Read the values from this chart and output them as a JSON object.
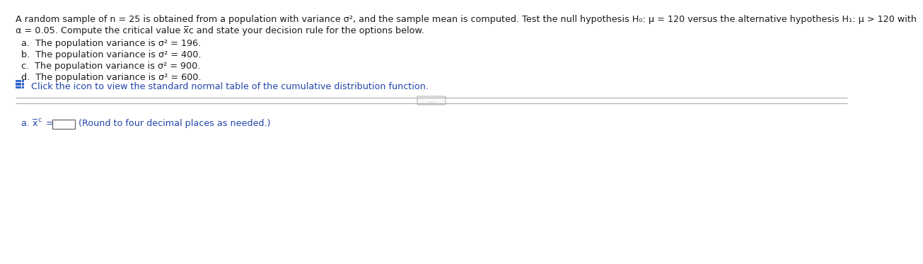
{
  "bg_color": "#ffffff",
  "text_color": "#1a1a1a",
  "blue_color": "#2244aa",
  "separator_color": "#999999",
  "icon_blue": "#3366cc",
  "paragraph1": "A random sample of n = 25 is obtained from a population with variance σ², and the sample mean is computed. Test the null hypothesis H₀: μ = 120 versus the alternative hypothesis H₁: μ > 120 with",
  "paragraph2": "α = 0.05. Compute the critical value x̅c and state your decision rule for the options below.",
  "item_a": "a.  The population variance is σ² = 196.",
  "item_b": "b.  The population variance is σ² = 400.",
  "item_c": "c.  The population variance is σ² = 900.",
  "item_d": "d.  The population variance is σ² = 600.",
  "click_text": "Click the icon to view the standard normal table of the cumulative distribution function.",
  "separator_button": "...",
  "answer_hint": "(Round to four decimal places as needed.)",
  "font_size_main": 9.2,
  "font_size_answer": 9.2
}
